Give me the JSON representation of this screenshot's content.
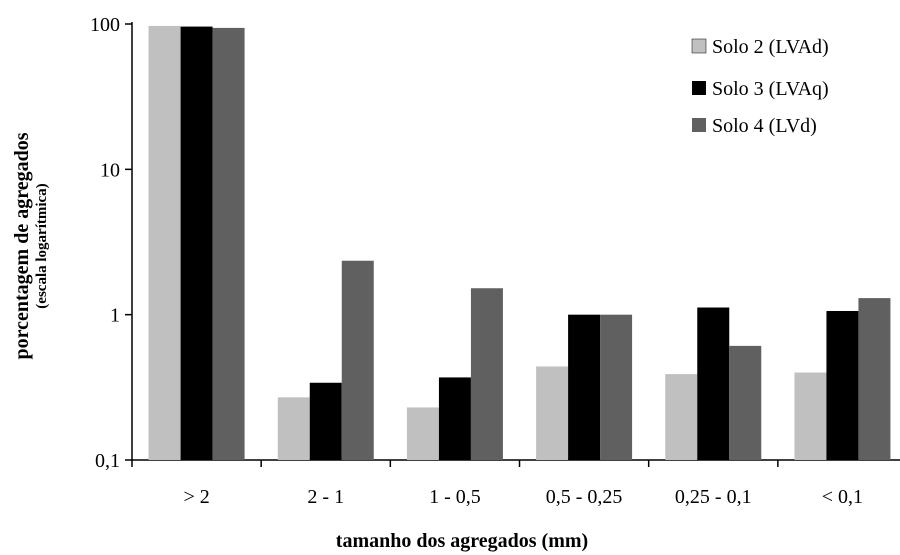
{
  "chart_data": {
    "type": "bar",
    "scale_y": "log",
    "ylim": [
      0.1,
      100
    ],
    "y_ticks": [
      {
        "value": 0.1,
        "label": "0,1"
      },
      {
        "value": 1,
        "label": "1"
      },
      {
        "value": 10,
        "label": "10"
      },
      {
        "value": 100,
        "label": "100"
      }
    ],
    "categories": [
      "> 2",
      "2 - 1",
      "1 - 0,5",
      "0,5 - 0,25",
      "0,25 - 0,1",
      "< 0,1"
    ],
    "series": [
      {
        "name": "Solo 2 (LVAd)",
        "color": "#c0c0c0",
        "values": [
          97,
          0.27,
          0.23,
          0.44,
          0.39,
          0.4
        ]
      },
      {
        "name": "Solo 3 (LVAq)",
        "color": "#000000",
        "values": [
          96,
          0.34,
          0.37,
          1.0,
          1.12,
          1.06
        ]
      },
      {
        "name": "Solo 4 (LVd)",
        "color": "#606060",
        "values": [
          94,
          2.35,
          1.52,
          1.0,
          0.61,
          1.3
        ]
      }
    ],
    "xlabel": "tamanho dos agregados (mm)",
    "ylabel": "porcentagem de agregados",
    "ylabel_sub": "(escala logarítmica)",
    "legend_position": "top-right",
    "grid": false
  }
}
